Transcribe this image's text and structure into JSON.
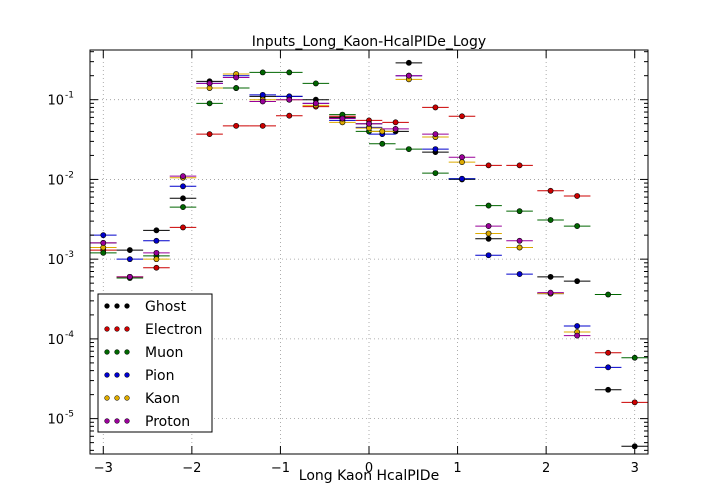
{
  "chart_data": {
    "type": "scatter",
    "title": "Inputs_Long_Kaon-HcalPIDe_Logy",
    "xlabel": "Long Kaon HcalPIDe",
    "ylabel": "",
    "xlim": [
      -3.15,
      3.15
    ],
    "ylim": [
      3.6e-06,
      0.42
    ],
    "yscale": "log",
    "grid": true,
    "legend_position": "lower-left",
    "bin_width": 0.3,
    "x_ticks": [
      -3,
      -2,
      -1,
      0,
      1,
      2,
      3
    ],
    "x_tick_labels": [
      "−3",
      "−2",
      "−1",
      "0",
      "1",
      "2",
      "3"
    ],
    "y_ticks": [
      1e-05,
      0.0001,
      0.001,
      0.01,
      0.1
    ],
    "y_tick_labels": [
      {
        "base": "10",
        "exp": "-5"
      },
      {
        "base": "10",
        "exp": "-4"
      },
      {
        "base": "10",
        "exp": "-3"
      },
      {
        "base": "10",
        "exp": "-2"
      },
      {
        "base": "10",
        "exp": "-1"
      }
    ],
    "series": [
      {
        "name": "Ghost",
        "color": "#000000",
        "points": [
          [
            -3.0,
            0.0016
          ],
          [
            -2.7,
            0.0013
          ],
          [
            -2.4,
            0.0023
          ],
          [
            -2.1,
            0.0058
          ],
          [
            -1.8,
            0.17
          ],
          [
            -1.5,
            0.14
          ],
          [
            -1.2,
            0.11
          ],
          [
            -0.9,
            0.11
          ],
          [
            -0.6,
            0.1
          ],
          [
            -0.3,
            0.06
          ],
          [
            0.0,
            0.05
          ],
          [
            0.3,
            0.04
          ],
          [
            0.45,
            0.29
          ],
          [
            0.75,
            0.022
          ],
          [
            1.05,
            0.01
          ],
          [
            1.35,
            0.0018
          ],
          [
            1.7,
            0.0014
          ],
          [
            2.05,
            0.0006
          ],
          [
            2.35,
            0.00053
          ],
          [
            2.7,
            2.3e-05
          ],
          [
            3.0,
            4.5e-06
          ]
        ]
      },
      {
        "name": "Electron",
        "color": "#cc0000",
        "points": [
          [
            -3.0,
            0.0013
          ],
          [
            -2.7,
            0.0006
          ],
          [
            -2.4,
            0.00078
          ],
          [
            -2.1,
            0.0025
          ],
          [
            -1.8,
            0.037
          ],
          [
            -1.5,
            0.047
          ],
          [
            -1.2,
            0.047
          ],
          [
            -0.9,
            0.063
          ],
          [
            -0.6,
            0.082
          ],
          [
            -0.3,
            0.062
          ],
          [
            0.0,
            0.055
          ],
          [
            0.3,
            0.052
          ],
          [
            0.75,
            0.08
          ],
          [
            1.05,
            0.062
          ],
          [
            1.35,
            0.015
          ],
          [
            1.7,
            0.015
          ],
          [
            2.05,
            0.0072
          ],
          [
            2.35,
            0.0062
          ],
          [
            2.7,
            6.7e-05
          ],
          [
            3.0,
            1.6e-05
          ]
        ]
      },
      {
        "name": "Muon",
        "color": "#006600",
        "points": [
          [
            -3.0,
            0.0012
          ],
          [
            -2.7,
            0.00058
          ],
          [
            -2.4,
            0.0011
          ],
          [
            -2.1,
            0.0045
          ],
          [
            -1.8,
            0.09
          ],
          [
            -1.5,
            0.14
          ],
          [
            -1.2,
            0.22
          ],
          [
            -0.9,
            0.22
          ],
          [
            -0.6,
            0.16
          ],
          [
            -0.3,
            0.065
          ],
          [
            0.0,
            0.04
          ],
          [
            0.15,
            0.028
          ],
          [
            0.45,
            0.024
          ],
          [
            0.75,
            0.012
          ],
          [
            1.05,
            0.0102
          ],
          [
            1.35,
            0.0047
          ],
          [
            1.7,
            0.004
          ],
          [
            2.05,
            0.0031
          ],
          [
            2.35,
            0.0026
          ],
          [
            2.7,
            0.00036
          ],
          [
            3.0,
            5.8e-05
          ]
        ]
      },
      {
        "name": "Pion",
        "color": "#0000cc",
        "points": [
          [
            -3.0,
            0.002
          ],
          [
            -2.7,
            0.001
          ],
          [
            -2.4,
            0.0017
          ],
          [
            -2.1,
            0.0082
          ],
          [
            -1.8,
            0.16
          ],
          [
            -1.5,
            0.2
          ],
          [
            -1.2,
            0.115
          ],
          [
            -0.9,
            0.11
          ],
          [
            -0.6,
            0.09
          ],
          [
            -0.3,
            0.055
          ],
          [
            0.0,
            0.045
          ],
          [
            0.15,
            0.037
          ],
          [
            0.45,
            0.2
          ],
          [
            0.75,
            0.024
          ],
          [
            1.05,
            0.0102
          ],
          [
            1.35,
            0.00112
          ],
          [
            1.7,
            0.00065
          ],
          [
            2.05,
            0.00037
          ],
          [
            2.35,
            0.000145
          ],
          [
            2.7,
            4.4e-05
          ]
        ]
      },
      {
        "name": "Kaon",
        "color": "#ddaa00",
        "points": [
          [
            -3.0,
            0.0014
          ],
          [
            -2.7,
            0.0006
          ],
          [
            -2.4,
            0.001
          ],
          [
            -2.1,
            0.0105
          ],
          [
            -1.8,
            0.14
          ],
          [
            -1.5,
            0.21
          ],
          [
            -1.2,
            0.1
          ],
          [
            -0.9,
            0.1
          ],
          [
            -0.6,
            0.085
          ],
          [
            -0.3,
            0.052
          ],
          [
            0.0,
            0.044
          ],
          [
            0.15,
            0.04
          ],
          [
            0.45,
            0.18
          ],
          [
            0.75,
            0.034
          ],
          [
            1.05,
            0.0165
          ],
          [
            1.35,
            0.0021
          ],
          [
            1.7,
            0.0014
          ],
          [
            2.05,
            0.00037
          ],
          [
            2.35,
            0.000122
          ]
        ]
      },
      {
        "name": "Proton",
        "color": "#990099",
        "points": [
          [
            -3.0,
            0.0016
          ],
          [
            -2.7,
            0.0006
          ],
          [
            -2.4,
            0.0012
          ],
          [
            -2.1,
            0.011
          ],
          [
            -1.8,
            0.16
          ],
          [
            -1.5,
            0.19
          ],
          [
            -1.2,
            0.095
          ],
          [
            -0.9,
            0.1
          ],
          [
            -0.6,
            0.09
          ],
          [
            -0.3,
            0.058
          ],
          [
            0.0,
            0.05
          ],
          [
            0.3,
            0.043
          ],
          [
            0.45,
            0.2
          ],
          [
            0.75,
            0.037
          ],
          [
            1.05,
            0.019
          ],
          [
            1.35,
            0.0026
          ],
          [
            1.7,
            0.0017
          ],
          [
            2.05,
            0.00038
          ],
          [
            2.35,
            0.00011
          ]
        ]
      }
    ]
  }
}
